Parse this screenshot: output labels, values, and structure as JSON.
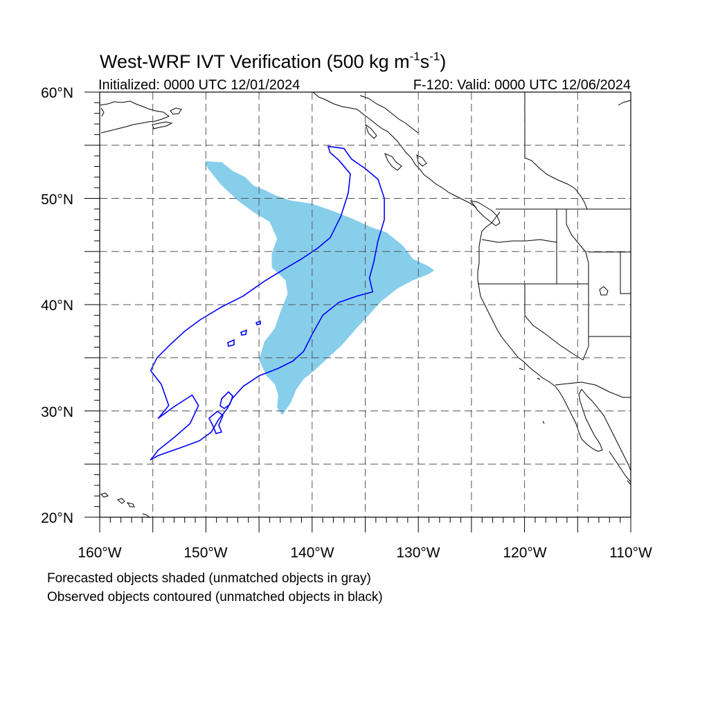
{
  "title": {
    "main": "West-WRF IVT Verification (500 kg m",
    "sup1": "-1",
    "mid": "s",
    "sup2": "-1",
    "close": ")"
  },
  "subtitle_left": "Initialized: 0000 UTC 12/01/2024",
  "subtitle_right": "F-120: Valid: 0000 UTC 12/06/2024",
  "axes": {
    "lat_labels": [
      "60°N",
      "50°N",
      "40°N",
      "30°N",
      "20°N"
    ],
    "lon_labels": [
      "160°W",
      "150°W",
      "140°W",
      "130°W",
      "120°W",
      "110°W"
    ]
  },
  "captions": [
    "Forecasted objects shaded (unmatched objects in gray)",
    "Observed objects contoured (unmatched objects in black)"
  ],
  "colors": {
    "forecast_fill": "#87ceeb",
    "observed_contour": "#0000ff",
    "coastline": "#000000",
    "grid": "#555555"
  },
  "chart_data": {
    "type": "map",
    "projection": "cylindrical-equidistant",
    "lon_range": [
      -160,
      -110
    ],
    "lat_range": [
      20,
      60
    ],
    "grid": true,
    "forecast_object_outline": [
      [
        -150.1,
        53.5
      ],
      [
        -148.5,
        53.4
      ],
      [
        -147.5,
        52.6
      ],
      [
        -146.3,
        52.0
      ],
      [
        -145.5,
        51.2
      ],
      [
        -144.5,
        50.8
      ],
      [
        -143.5,
        50.3
      ],
      [
        -142.0,
        49.8
      ],
      [
        -140.0,
        49.5
      ],
      [
        -138.0,
        48.8
      ],
      [
        -136.0,
        48.0
      ],
      [
        -134.5,
        47.3
      ],
      [
        -133.0,
        46.8
      ],
      [
        -131.5,
        45.6
      ],
      [
        -130.5,
        44.3
      ],
      [
        -129.0,
        43.6
      ],
      [
        -128.5,
        43.2
      ],
      [
        -129.2,
        42.8
      ],
      [
        -130.5,
        42.3
      ],
      [
        -132.0,
        41.5
      ],
      [
        -133.5,
        40.3
      ],
      [
        -134.5,
        39.2
      ],
      [
        -135.8,
        37.8
      ],
      [
        -137.2,
        36.2
      ],
      [
        -138.5,
        35.0
      ],
      [
        -139.8,
        33.8
      ],
      [
        -140.8,
        33.0
      ],
      [
        -141.5,
        32.0
      ],
      [
        -142.0,
        30.8
      ],
      [
        -142.8,
        29.6
      ],
      [
        -143.3,
        30.3
      ],
      [
        -143.2,
        31.5
      ],
      [
        -143.5,
        32.5
      ],
      [
        -144.3,
        33.3
      ],
      [
        -145.0,
        34.8
      ],
      [
        -144.5,
        36.5
      ],
      [
        -143.5,
        37.8
      ],
      [
        -143.0,
        39.3
      ],
      [
        -142.3,
        41.0
      ],
      [
        -142.5,
        42.3
      ],
      [
        -143.8,
        43.5
      ],
      [
        -143.8,
        44.8
      ],
      [
        -143.3,
        46.2
      ],
      [
        -144.0,
        47.8
      ],
      [
        -145.5,
        48.7
      ],
      [
        -147.0,
        49.8
      ],
      [
        -148.6,
        51.3
      ],
      [
        -149.8,
        52.8
      ]
    ],
    "observed_object_outline": [
      [
        -138.5,
        54.9
      ],
      [
        -137.0,
        54.7
      ],
      [
        -136.3,
        53.7
      ],
      [
        -135.0,
        52.8
      ],
      [
        -133.8,
        51.8
      ],
      [
        -133.2,
        50.0
      ],
      [
        -133.2,
        48.0
      ],
      [
        -133.8,
        46.0
      ],
      [
        -134.2,
        44.0
      ],
      [
        -134.6,
        42.5
      ],
      [
        -134.3,
        41.2
      ],
      [
        -135.8,
        40.8
      ],
      [
        -137.5,
        40.2
      ],
      [
        -139.0,
        39.0
      ],
      [
        -140.0,
        37.2
      ],
      [
        -140.8,
        35.6
      ],
      [
        -141.8,
        34.7
      ],
      [
        -143.2,
        34.0
      ],
      [
        -145.0,
        33.3
      ],
      [
        -146.5,
        32.3
      ],
      [
        -147.5,
        31.2
      ],
      [
        -148.0,
        30.2
      ],
      [
        -148.8,
        29.2
      ],
      [
        -149.5,
        28.0
      ],
      [
        -150.6,
        27.2
      ],
      [
        -152.5,
        26.5
      ],
      [
        -154.5,
        25.8
      ],
      [
        -155.2,
        25.4
      ],
      [
        -154.5,
        26.3
      ],
      [
        -153.0,
        27.5
      ],
      [
        -151.5,
        28.8
      ],
      [
        -150.7,
        30.5
      ],
      [
        -151.3,
        31.5
      ],
      [
        -153.0,
        30.4
      ],
      [
        -154.5,
        29.3
      ],
      [
        -153.5,
        30.5
      ],
      [
        -154.2,
        32.5
      ],
      [
        -155.2,
        33.8
      ],
      [
        -154.6,
        35.0
      ],
      [
        -153.4,
        36.2
      ],
      [
        -152.0,
        37.5
      ],
      [
        -150.5,
        38.6
      ],
      [
        -148.5,
        39.8
      ],
      [
        -146.5,
        40.8
      ],
      [
        -144.5,
        42.2
      ],
      [
        -142.7,
        43.3
      ],
      [
        -141.0,
        44.3
      ],
      [
        -139.5,
        45.3
      ],
      [
        -138.3,
        46.3
      ],
      [
        -137.3,
        48.3
      ],
      [
        -136.6,
        50.5
      ],
      [
        -136.4,
        52.3
      ],
      [
        -137.5,
        53.6
      ],
      [
        -138.3,
        54.3
      ]
    ]
  }
}
